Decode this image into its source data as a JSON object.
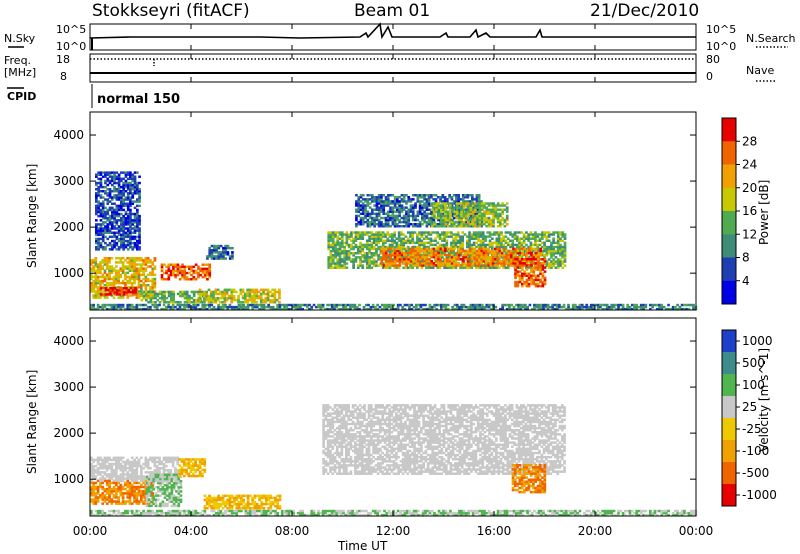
{
  "header": {
    "station": "Stokkseyri (fitACF)",
    "beam": "Beam 01",
    "date": "21/Dec/2010"
  },
  "top_panels": {
    "nsky_label": "N.Sky",
    "nsky_ticks": [
      "10^5",
      "10^0"
    ],
    "nsearch_label": "N.Search",
    "nsearch_ticks": [
      "10^5",
      "10^0"
    ],
    "freq_label_line1": "Freq.",
    "freq_label_line2": "[MHz]",
    "freq_ticks": [
      "18",
      "8"
    ],
    "nave_label": "Nave",
    "nave_ticks": [
      "80",
      "0"
    ],
    "cpid_label": "CPID",
    "cpid_value": "normal 150"
  },
  "chart_data": [
    {
      "type": "heatmap",
      "name": "power",
      "ylabel": "Slant Range [km]",
      "xlabel": "Time UT",
      "xlim": [
        "00:00",
        "24:00"
      ],
      "ylim": [
        200,
        4500
      ],
      "x_ticks": [
        "00:00",
        "04:00",
        "08:00",
        "12:00",
        "16:00",
        "20:00",
        "00:00"
      ],
      "y_ticks": [
        "1000",
        "2000",
        "3000",
        "4000"
      ],
      "colorbar": {
        "label": "Power [dB]",
        "ticks": [
          "4",
          "8",
          "12",
          "16",
          "20",
          "24",
          "28"
        ],
        "colors": [
          "#0000e6",
          "#1e3fb4",
          "#3c8c78",
          "#50aa50",
          "#c8c800",
          "#f0a000",
          "#f06400",
          "#e60000"
        ],
        "range": [
          0,
          32
        ]
      },
      "regions": [
        {
          "t0": 0.0,
          "t1": 2.6,
          "r0": 450,
          "r1": 1350,
          "value": 20
        },
        {
          "t0": 0.4,
          "t1": 1.8,
          "r0": 520,
          "r1": 700,
          "value": 30
        },
        {
          "t0": 2.0,
          "t1": 4.5,
          "r0": 350,
          "r1": 600,
          "value": 14
        },
        {
          "t0": 2.8,
          "t1": 4.7,
          "r0": 850,
          "r1": 1200,
          "value": 26
        },
        {
          "t0": 4.6,
          "t1": 5.6,
          "r0": 1300,
          "r1": 1600,
          "value": 8
        },
        {
          "t0": 4.3,
          "t1": 7.5,
          "r0": 350,
          "r1": 650,
          "value": 18
        },
        {
          "t0": 9.4,
          "t1": 18.8,
          "r0": 1100,
          "r1": 1900,
          "value": 14
        },
        {
          "t0": 11.5,
          "t1": 17.8,
          "r0": 1150,
          "r1": 1550,
          "value": 24
        },
        {
          "t0": 10.5,
          "t1": 15.5,
          "r0": 2000,
          "r1": 2700,
          "value": 8
        },
        {
          "t0": 13.5,
          "t1": 16.5,
          "r0": 2000,
          "r1": 2500,
          "value": 16
        },
        {
          "t0": 16.8,
          "t1": 18.0,
          "r0": 700,
          "r1": 1300,
          "value": 26
        },
        {
          "t0": 0.2,
          "t1": 2.0,
          "r0": 1500,
          "r1": 3200,
          "value": 6
        },
        {
          "t0": 0.0,
          "t1": 24.0,
          "r0": 200,
          "r1": 330,
          "value": 10
        }
      ]
    },
    {
      "type": "heatmap",
      "name": "velocity",
      "ylabel": "Slant Range [km]",
      "xlabel": "Time UT",
      "xlim": [
        "00:00",
        "24:00"
      ],
      "ylim": [
        200,
        4500
      ],
      "x_ticks": [
        "00:00",
        "04:00",
        "08:00",
        "12:00",
        "16:00",
        "20:00",
        "00:00"
      ],
      "y_ticks": [
        "1000",
        "2000",
        "3000",
        "4000"
      ],
      "colorbar": {
        "label": "Velocity [m s^-1]",
        "ticks": [
          "1000",
          "500",
          "100",
          "25",
          "-25",
          "-100",
          "-500",
          "-1000"
        ],
        "colors": [
          "#1e3fc8",
          "#3c8c8c",
          "#50b450",
          "#c8c8c8",
          "#f0c800",
          "#f0a000",
          "#f06400",
          "#e60000"
        ]
      },
      "regions": [
        {
          "t0": 0.0,
          "t1": 2.5,
          "r0": 450,
          "r1": 950,
          "value": -500
        },
        {
          "t0": 0.0,
          "t1": 3.5,
          "r0": 950,
          "r1": 1450,
          "value": 0
        },
        {
          "t0": 2.2,
          "t1": 3.6,
          "r0": 400,
          "r1": 1100,
          "value": 100
        },
        {
          "t0": 3.5,
          "t1": 4.5,
          "r0": 1050,
          "r1": 1450,
          "value": -100
        },
        {
          "t0": 4.5,
          "t1": 7.5,
          "r0": 350,
          "r1": 650,
          "value": -100
        },
        {
          "t0": 9.2,
          "t1": 18.8,
          "r0": 1100,
          "r1": 2600,
          "value": 0
        },
        {
          "t0": 16.7,
          "t1": 18.0,
          "r0": 700,
          "r1": 1300,
          "value": -500
        },
        {
          "t0": 0.0,
          "t1": 24.0,
          "r0": 200,
          "r1": 330,
          "value": 100
        }
      ]
    }
  ]
}
